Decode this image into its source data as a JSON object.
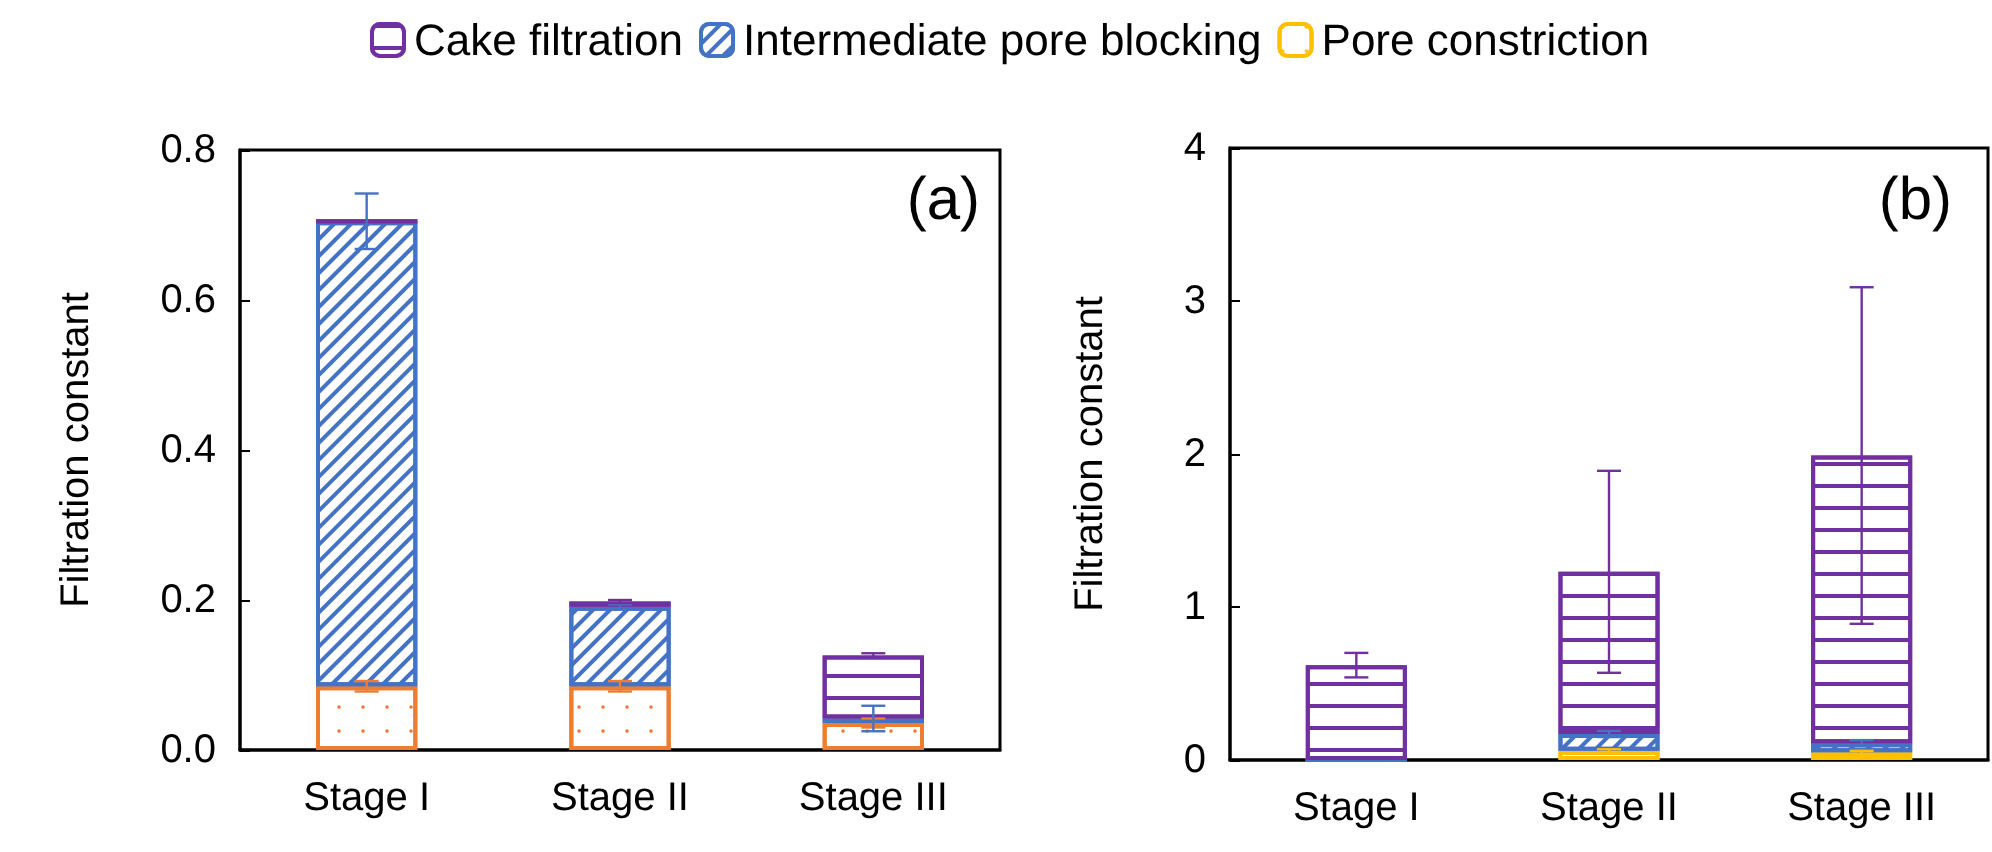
{
  "chart_data": [
    {
      "type": "bar",
      "stacked": true,
      "ylabel": "Filtration constant",
      "categories": [
        "Stage I",
        "Stage II",
        "Stage III"
      ],
      "ylim": [
        0,
        0.8
      ],
      "yticks": [
        {
          "value": 0,
          "label": "0.0"
        },
        {
          "value": 0.2,
          "label": "0.2"
        },
        {
          "value": 0.4,
          "label": "0.4"
        },
        {
          "value": 0.6,
          "label": "0.6"
        },
        {
          "value": 0.8,
          "label": "0.8"
        }
      ],
      "grid": false,
      "legend": false,
      "annotations": [
        "(a)"
      ],
      "series": [
        {
          "color": "#ed7d31",
          "values": [
            0.085,
            0.085,
            0.036
          ],
          "errors": [
            0.007,
            0.007,
            0.006
          ]
        },
        {
          "color": "#4472c4",
          "values": [
            0.62,
            0.106,
            0.006
          ],
          "errors": [
            0.037,
            0.003,
            0.017
          ]
        },
        {
          "color": "#7030a0",
          "values": [
            0,
            0.007,
            0.084
          ],
          "errors": [
            null,
            0.002,
            0.003
          ]
        }
      ]
    },
    {
      "type": "bar",
      "stacked": true,
      "ylabel": "Filtration constant",
      "categories": [
        "Stage I",
        "Stage II",
        "Stage III"
      ],
      "ylim": [
        0,
        4
      ],
      "yticks": [
        0,
        1,
        2,
        3,
        4
      ],
      "grid": false,
      "legend": "top",
      "annotations": [
        "(b)"
      ],
      "series": [
        {
          "name": "Pore constriction",
          "color": "#ffc000",
          "values": [
            0,
            0.06,
            0.05
          ],
          "errors": [
            null,
            0.01,
            0.01
          ]
        },
        {
          "name": "Intermediate pore blocking",
          "color": "#4472c4",
          "values": [
            0,
            0.11,
            0.06
          ],
          "errors": [
            null,
            0.02,
            0.02
          ]
        },
        {
          "name": "Cake filtration",
          "color": "#7030a0",
          "values": [
            0.62,
            1.06,
            1.88
          ],
          "errors": [
            0.08,
            0.66,
            1.1
          ]
        }
      ]
    }
  ]
}
